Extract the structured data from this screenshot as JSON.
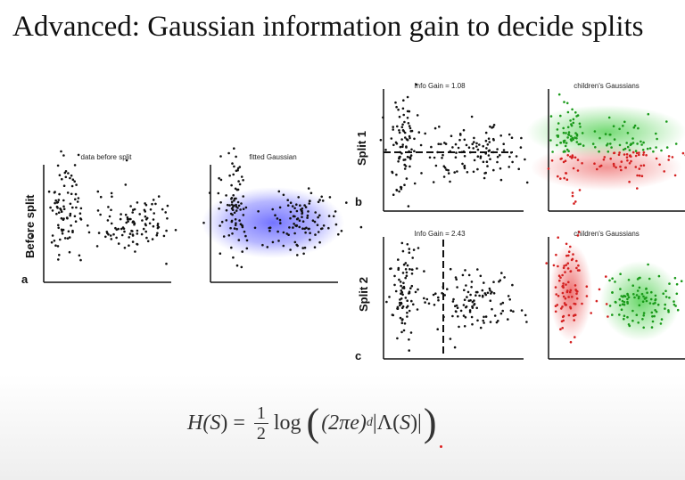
{
  "slide": {
    "title": "Advanced: Gaussian information gain to decide splits"
  },
  "labels": {
    "before_split": "Before split",
    "split1": "Split 1",
    "split2": "Split 2",
    "letter_a": "a",
    "letter_b": "b",
    "letter_c": "c"
  },
  "panels": {
    "data_before_split": "data before split",
    "fitted_gaussian": "fitted Gaussian",
    "info_gain_1": "Info Gain = 1.08",
    "childrens_gaussians_1": "children's Gaussians",
    "info_gain_2": "Info Gain = 2.43",
    "childrens_gaussians_2": "children's Gaussians"
  },
  "formula": {
    "lhs": "H(",
    "set": "S",
    "eq": ") =",
    "num": "1",
    "den": "2",
    "log": "log",
    "inner_open": "(2πe)",
    "exp": "d",
    "det_open": "|Λ(",
    "det_close": ")|"
  },
  "colors": {
    "points": "#111111",
    "gaussian_blue": "#5b5bff",
    "green": "#1a9a1a",
    "red": "#d42020"
  }
}
